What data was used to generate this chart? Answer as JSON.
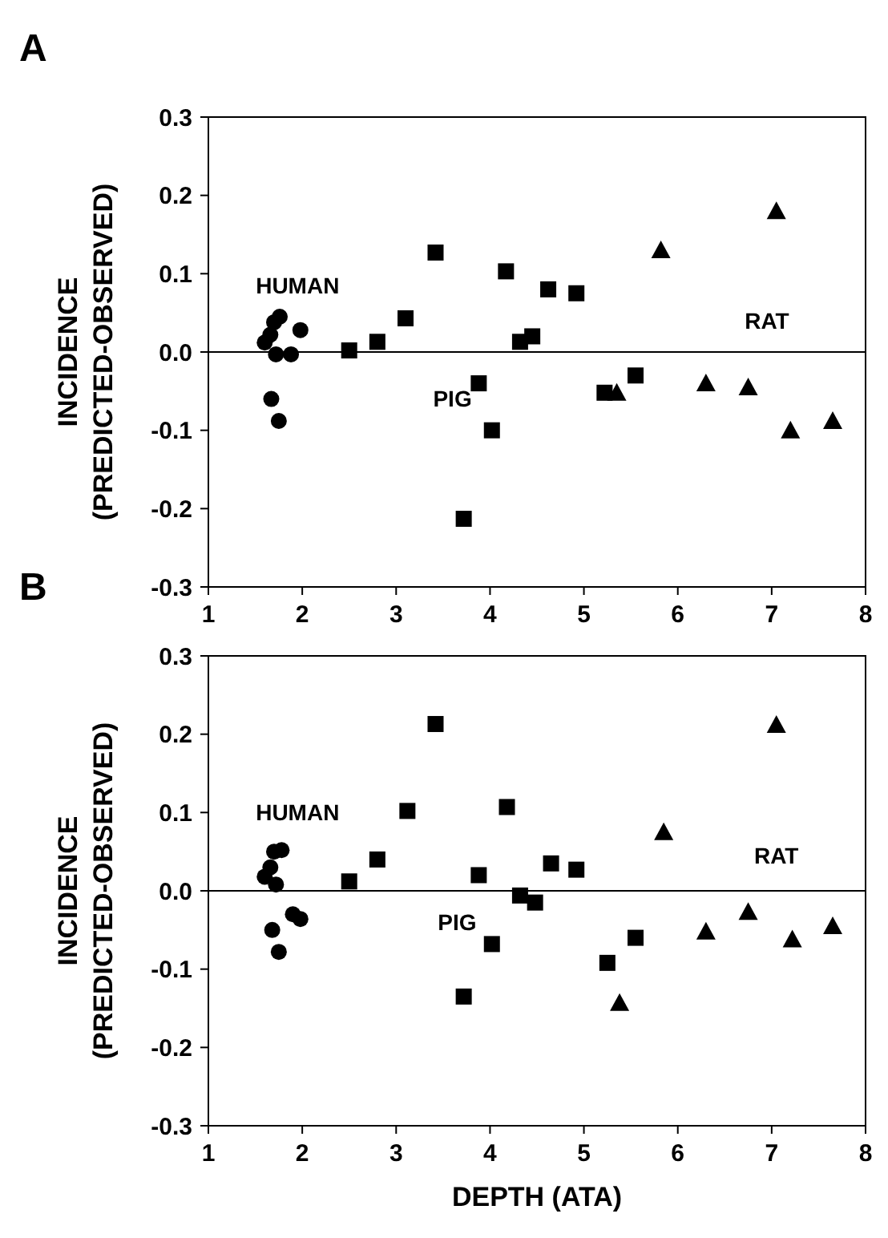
{
  "chart_data": [
    {
      "type": "scatter",
      "title": "A",
      "ylabel": "INCIDENCE\n(PREDICTED-OBSERVED)",
      "xlim": [
        1,
        8
      ],
      "xticks": [
        1,
        2,
        3,
        4,
        5,
        6,
        7,
        8
      ],
      "ylim": [
        -0.3,
        0.3
      ],
      "yticks": [
        {
          "value": -0.3,
          "label": "-0.3"
        },
        {
          "value": -0.2,
          "label": "-0.2"
        },
        {
          "value": -0.1,
          "label": "-0.1"
        },
        {
          "value": 0,
          "label": "0.0"
        },
        {
          "value": 0.1,
          "label": "0.1"
        },
        {
          "value": 0.2,
          "label": "0.2"
        },
        {
          "value": 0.3,
          "label": "0.3"
        }
      ],
      "grid": false,
      "ref_lines": [
        {
          "axis": "y",
          "value": 0,
          "color": "#000000"
        }
      ],
      "series": [
        {
          "name": "HUMAN",
          "color": "#000000",
          "marker": "circle",
          "x": [
            1.6,
            1.66,
            1.7,
            1.76,
            1.72,
            1.88,
            1.98,
            1.67,
            1.75
          ],
          "values": [
            0.012,
            0.022,
            0.038,
            0.045,
            -0.003,
            -0.003,
            0.028,
            -0.06,
            -0.088
          ]
        },
        {
          "name": "PIG",
          "color": "#000000",
          "marker": "square",
          "x": [
            2.5,
            2.8,
            3.1,
            3.42,
            3.72,
            3.88,
            4.02,
            4.17,
            4.32,
            4.45,
            4.62,
            4.92,
            5.22,
            5.55
          ],
          "values": [
            0.002,
            0.013,
            0.043,
            0.127,
            -0.213,
            -0.04,
            -0.1,
            0.103,
            0.013,
            0.02,
            0.08,
            0.075,
            -0.052,
            -0.03
          ]
        },
        {
          "name": "RAT",
          "color": "#000000",
          "marker": "triangle",
          "x": [
            5.35,
            5.82,
            6.3,
            6.75,
            7.05,
            7.2,
            7.65
          ],
          "values": [
            -0.052,
            0.13,
            -0.04,
            -0.045,
            0.18,
            -0.1,
            -0.088
          ]
        }
      ]
    },
    {
      "type": "scatter",
      "title": "B",
      "xlabel": "DEPTH (ATA)",
      "ylabel": "INCIDENCE\n(PREDICTED-OBSERVED)",
      "xlim": [
        1,
        8
      ],
      "xticks": [
        1,
        2,
        3,
        4,
        5,
        6,
        7,
        8
      ],
      "ylim": [
        -0.3,
        0.3
      ],
      "yticks": [
        {
          "value": -0.3,
          "label": "-0.3"
        },
        {
          "value": -0.2,
          "label": "-0.2"
        },
        {
          "value": -0.1,
          "label": "-0.1"
        },
        {
          "value": 0,
          "label": "0.0"
        },
        {
          "value": 0.1,
          "label": "0.1"
        },
        {
          "value": 0.2,
          "label": "0.2"
        },
        {
          "value": 0.3,
          "label": "0.3"
        }
      ],
      "grid": false,
      "ref_lines": [
        {
          "axis": "y",
          "value": 0,
          "color": "#000000"
        }
      ],
      "series": [
        {
          "name": "HUMAN",
          "color": "#000000",
          "marker": "circle",
          "x": [
            1.6,
            1.66,
            1.7,
            1.78,
            1.72,
            1.68,
            1.75,
            1.9,
            1.98
          ],
          "values": [
            0.018,
            0.03,
            0.05,
            0.052,
            0.008,
            -0.05,
            -0.078,
            -0.03,
            -0.036
          ]
        },
        {
          "name": "PIG",
          "color": "#000000",
          "marker": "square",
          "x": [
            2.5,
            2.8,
            3.12,
            3.42,
            3.72,
            3.88,
            4.02,
            4.18,
            4.32,
            4.48,
            4.65,
            4.92,
            5.25,
            5.55
          ],
          "values": [
            0.012,
            0.04,
            0.102,
            0.213,
            -0.135,
            0.02,
            -0.068,
            0.107,
            -0.006,
            -0.015,
            0.035,
            0.027,
            -0.092,
            -0.06
          ]
        },
        {
          "name": "RAT",
          "color": "#000000",
          "marker": "triangle",
          "x": [
            5.38,
            5.85,
            6.3,
            6.75,
            7.05,
            7.22,
            7.65
          ],
          "values": [
            -0.143,
            0.075,
            -0.052,
            -0.027,
            0.212,
            -0.062,
            -0.045
          ]
        }
      ]
    }
  ]
}
